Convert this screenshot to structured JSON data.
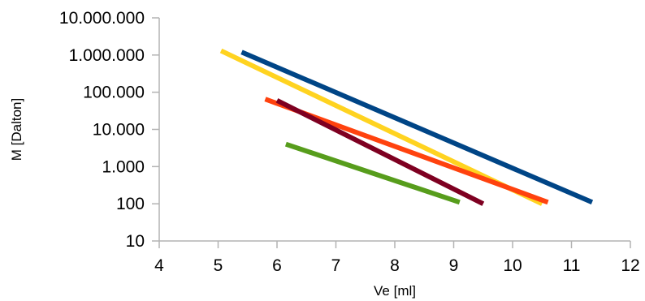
{
  "chart_data": {
    "type": "line",
    "title": "",
    "xlabel": "Ve [ml]",
    "ylabel": "M [Dalton]",
    "xlim": [
      4,
      12
    ],
    "ylim": [
      10,
      10000000
    ],
    "y_scale": "log",
    "x_ticks": [
      4,
      5,
      6,
      7,
      8,
      9,
      10,
      11,
      12
    ],
    "x_tick_labels": [
      "4",
      "5",
      "6",
      "7",
      "8",
      "9",
      "10",
      "11",
      "12"
    ],
    "y_ticks": [
      10,
      100,
      1000,
      10000,
      100000,
      1000000,
      10000000
    ],
    "y_tick_labels": [
      "10",
      "100",
      "1.000",
      "10.000",
      "100.000",
      "1.000.000",
      "10.000.000"
    ],
    "grid": false,
    "legend": "none",
    "series": [
      {
        "color": "#004586",
        "x": [
          5.4,
          11.35
        ],
        "y": [
          1200000,
          110
        ]
      },
      {
        "color": "#ffd320",
        "x": [
          5.05,
          10.5
        ],
        "y": [
          1300000,
          100
        ]
      },
      {
        "color": "#ff420e",
        "x": [
          5.8,
          10.6
        ],
        "y": [
          65000,
          110
        ]
      },
      {
        "color": "#7e0021",
        "x": [
          6.0,
          9.5
        ],
        "y": [
          60000,
          100
        ]
      },
      {
        "color": "#579d1c",
        "x": [
          6.15,
          9.1
        ],
        "y": [
          4000,
          110
        ]
      }
    ]
  }
}
